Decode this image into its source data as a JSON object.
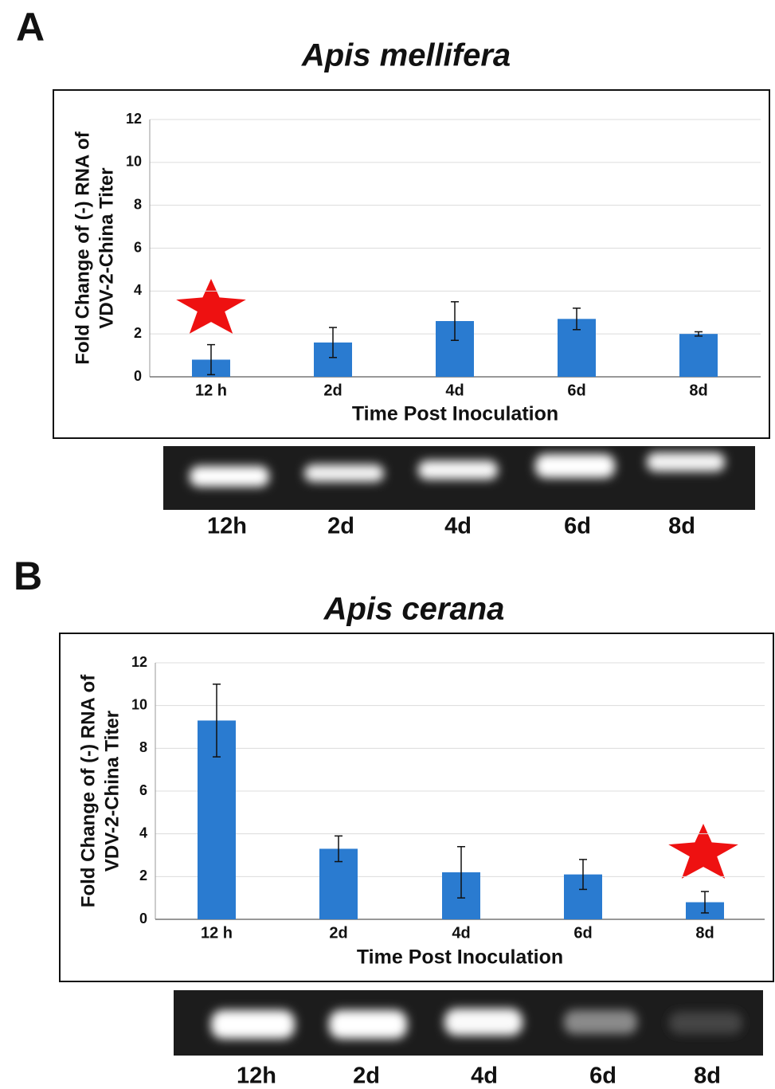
{
  "chart_data": [
    {
      "type": "bar",
      "panel": "A",
      "title": "Apis mellifera",
      "ylabel": [
        "Fold Change of (-) RNA of",
        "VDV-2-China Titer"
      ],
      "xlabel": "Time Post Inoculation",
      "categories": [
        "12 h",
        "2d",
        "4d",
        "6d",
        "8d"
      ],
      "series": [
        {
          "color": "#2a7bd0",
          "values": [
            0.8,
            1.6,
            2.6,
            2.7,
            2.0
          ],
          "errors": [
            0.7,
            0.7,
            0.9,
            0.5,
            0.1
          ]
        }
      ],
      "ylim": [
        0,
        12
      ],
      "yticks": [
        0,
        2,
        4,
        6,
        8,
        10,
        12
      ],
      "grid": true,
      "gel_lanes": [
        "12h",
        "2d",
        "4d",
        "6d",
        "8d"
      ]
    },
    {
      "type": "bar",
      "panel": "B",
      "title": "Apis cerana",
      "ylabel": [
        "Fold Change of (-) RNA of",
        "VDV-2-China Titer"
      ],
      "xlabel": "Time Post Inoculation",
      "categories": [
        "12 h",
        "2d",
        "4d",
        "6d",
        "8d"
      ],
      "series": [
        {
          "color": "#2a7bd0",
          "values": [
            9.3,
            3.3,
            2.2,
            2.1,
            0.8
          ],
          "errors": [
            1.7,
            0.6,
            1.2,
            0.7,
            0.5
          ]
        }
      ],
      "ylim": [
        0,
        12
      ],
      "yticks": [
        0,
        2,
        4,
        6,
        8,
        10,
        12
      ],
      "grid": true,
      "gel_lanes": [
        "12h",
        "2d",
        "4d",
        "6d",
        "8d"
      ]
    }
  ]
}
